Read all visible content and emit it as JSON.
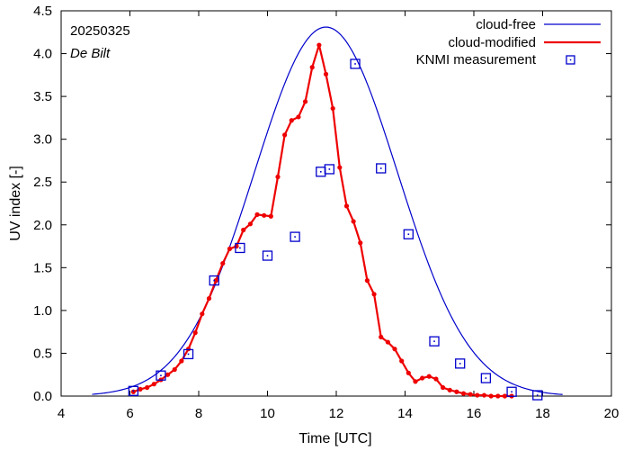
{
  "chart_data": {
    "type": "line",
    "title": "",
    "xlabel": "Time  [UTC]",
    "ylabel": "UV index  [-]",
    "xlim": [
      4,
      20
    ],
    "ylim": [
      0,
      4.5
    ],
    "xticks": [
      4,
      6,
      8,
      10,
      12,
      14,
      16,
      18,
      20
    ],
    "xtick_labels": [
      "4",
      "6",
      "8",
      "10",
      "12",
      "14",
      "16",
      "18",
      "20"
    ],
    "yticks": [
      0,
      0.5,
      1.0,
      1.5,
      2.0,
      2.5,
      3.0,
      3.5,
      4.0,
      4.5
    ],
    "ytick_labels": [
      "0.0",
      "0.5",
      "1.0",
      "1.5",
      "2.0",
      "2.5",
      "3.0",
      "3.5",
      "4.0",
      "4.5"
    ],
    "grid": false,
    "legend_position": "top-right",
    "annotations": {
      "date": "20250325",
      "station": "De Bilt"
    },
    "series": [
      {
        "name": "cloud-free",
        "style": "line",
        "color": "#0000cc",
        "peak": 4.31,
        "peak_time": 11.7,
        "sigma": 2.08,
        "x_start": 4.9,
        "x_end": 18.6
      },
      {
        "name": "cloud-modified",
        "style": "line-points",
        "color": "#ee0000",
        "x": [
          6.1,
          6.3,
          6.5,
          6.7,
          6.9,
          7.1,
          7.3,
          7.5,
          7.7,
          7.9,
          8.1,
          8.3,
          8.5,
          8.7,
          8.9,
          9.1,
          9.3,
          9.5,
          9.7,
          9.9,
          10.1,
          10.3,
          10.5,
          10.7,
          10.9,
          11.1,
          11.3,
          11.5,
          11.7,
          11.9,
          12.1,
          12.3,
          12.5,
          12.7,
          12.9,
          13.1,
          13.3,
          13.5,
          13.7,
          13.9,
          14.1,
          14.3,
          14.5,
          14.7,
          14.9,
          15.1,
          15.3,
          15.5,
          15.7,
          15.9,
          16.1,
          16.3,
          16.5,
          16.7,
          16.9,
          17.1
        ],
        "y": [
          0.05,
          0.08,
          0.1,
          0.14,
          0.19,
          0.25,
          0.31,
          0.41,
          0.55,
          0.74,
          0.96,
          1.14,
          1.35,
          1.55,
          1.72,
          1.75,
          1.94,
          2.01,
          2.12,
          2.11,
          2.1,
          2.56,
          3.05,
          3.22,
          3.26,
          3.44,
          3.84,
          4.1,
          3.76,
          3.36,
          2.67,
          2.22,
          2.04,
          1.79,
          1.35,
          1.19,
          0.69,
          0.63,
          0.55,
          0.41,
          0.27,
          0.17,
          0.21,
          0.23,
          0.2,
          0.1,
          0.07,
          0.05,
          0.03,
          0.02,
          0.01,
          0.01,
          0.0,
          0.0,
          0.0,
          0.0
        ]
      },
      {
        "name": "KNMI measurement",
        "style": "points",
        "color": "#0000cc",
        "x": [
          6.1,
          6.9,
          7.7,
          8.45,
          9.2,
          10.0,
          10.8,
          11.55,
          11.8,
          12.55,
          13.3,
          14.1,
          14.85,
          15.6,
          16.35,
          17.1,
          17.85
        ],
        "y": [
          0.06,
          0.24,
          0.49,
          1.35,
          1.73,
          1.64,
          1.86,
          2.62,
          2.65,
          3.88,
          2.66,
          1.89,
          0.64,
          0.38,
          0.21,
          0.05,
          0.01
        ]
      }
    ]
  }
}
